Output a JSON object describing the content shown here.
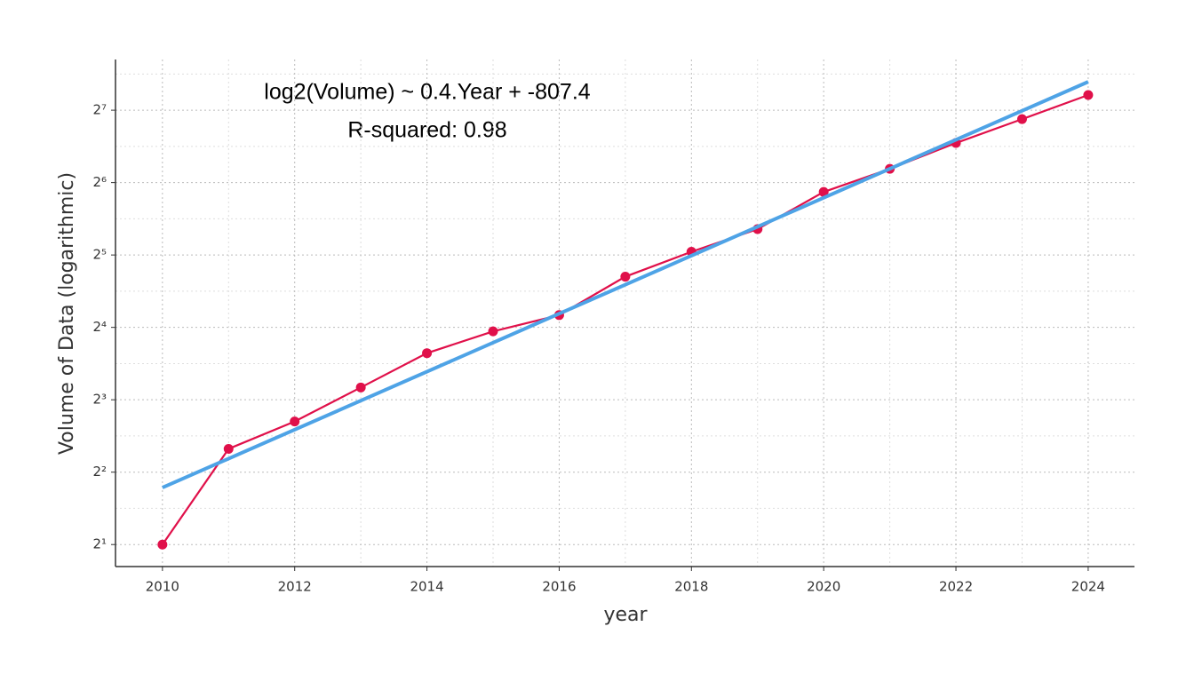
{
  "chart_data": {
    "type": "line",
    "log_y": 2,
    "grid": true,
    "xlabel": "year",
    "ylabel": "Volume of Data (logarithmic)",
    "annotations": [
      "log2(Volume) ~ 0.4.Year + -807.4",
      "R-squared: 0.98"
    ],
    "x": [
      2010,
      2011,
      2012,
      2013,
      2014,
      2015,
      2016,
      2017,
      2018,
      2019,
      2020,
      2021,
      2022,
      2023,
      2024
    ],
    "series": [
      {
        "color": "#e0104a",
        "values": [
          2,
          5,
          6.5,
          9,
          12.5,
          15.4,
          18,
          26,
          33,
          41,
          58.5,
          73,
          93.5,
          117.5,
          148
        ]
      },
      {
        "color": "#4ea3e6",
        "x": [
          2010,
          2024
        ],
        "values": [
          3.45,
          168
        ]
      }
    ],
    "xlim": [
      2009.29,
      2024.7
    ],
    "xticks": [
      2010,
      2012,
      2014,
      2016,
      2018,
      2020,
      2022,
      2024
    ],
    "x_minor_ticks": [
      2011,
      2013,
      2015,
      2017,
      2019,
      2021,
      2023
    ],
    "ylim": [
      1.62,
      208
    ],
    "yticks": [
      {
        "value": 2,
        "label": "2¹"
      },
      {
        "value": 4,
        "label": "2²"
      },
      {
        "value": 8,
        "label": "2³"
      },
      {
        "value": 16,
        "label": "2⁴"
      },
      {
        "value": 32,
        "label": "2⁵"
      },
      {
        "value": 64,
        "label": "2⁶"
      },
      {
        "value": 128,
        "label": "2⁷"
      }
    ],
    "y_minor_ticks": [
      2.83,
      5.66,
      11.31,
      22.63,
      45.25,
      90.51,
      181.02
    ]
  }
}
